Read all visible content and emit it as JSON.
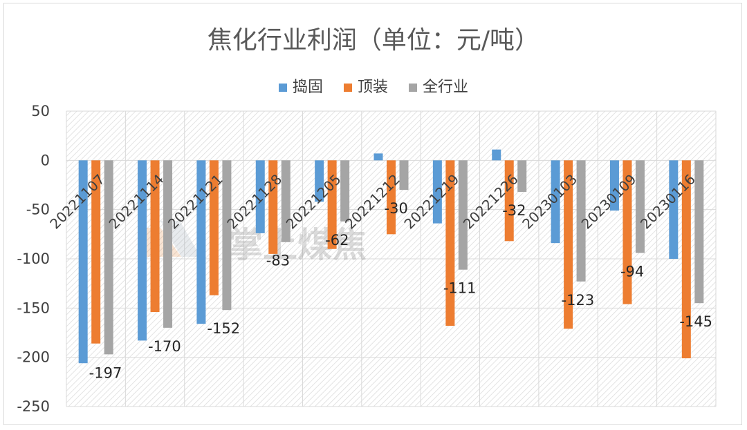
{
  "chart_data": {
    "type": "bar",
    "title": "焦化行业利润（单位：元/吨）",
    "categories": [
      "20221107",
      "20221114",
      "20221121",
      "20221128",
      "20221205",
      "20221212",
      "20221219",
      "20221226",
      "20230103",
      "20230109",
      "20230116"
    ],
    "series": [
      {
        "name": "捣固",
        "color": "#5b9bd5",
        "values": [
          -206,
          -183,
          -166,
          -74,
          -42,
          7,
          -64,
          11,
          -84,
          -51,
          -100
        ]
      },
      {
        "name": "顶装",
        "color": "#ed7d31",
        "values": [
          -186,
          -154,
          -137,
          -95,
          -90,
          -75,
          -168,
          -82,
          -171,
          -146,
          -201
        ]
      },
      {
        "name": "全行业",
        "color": "#a5a5a5",
        "values": [
          -197,
          -170,
          -152,
          -83,
          -62,
          -30,
          -111,
          -32,
          -123,
          -94,
          -145
        ]
      }
    ],
    "data_labels": {
      "series": "全行业",
      "values": [
        "-197",
        "-170",
        "-152",
        "-83",
        "-62",
        "-30",
        "-111",
        "-32",
        "-123",
        "-94",
        "-145"
      ]
    },
    "ylim": [
      -250,
      50
    ],
    "yticks": [
      "50",
      "0",
      "-50",
      "-100",
      "-150",
      "-200",
      "-250"
    ],
    "legend_position": "top",
    "gridlines": true,
    "watermark": "掌上煤焦"
  }
}
